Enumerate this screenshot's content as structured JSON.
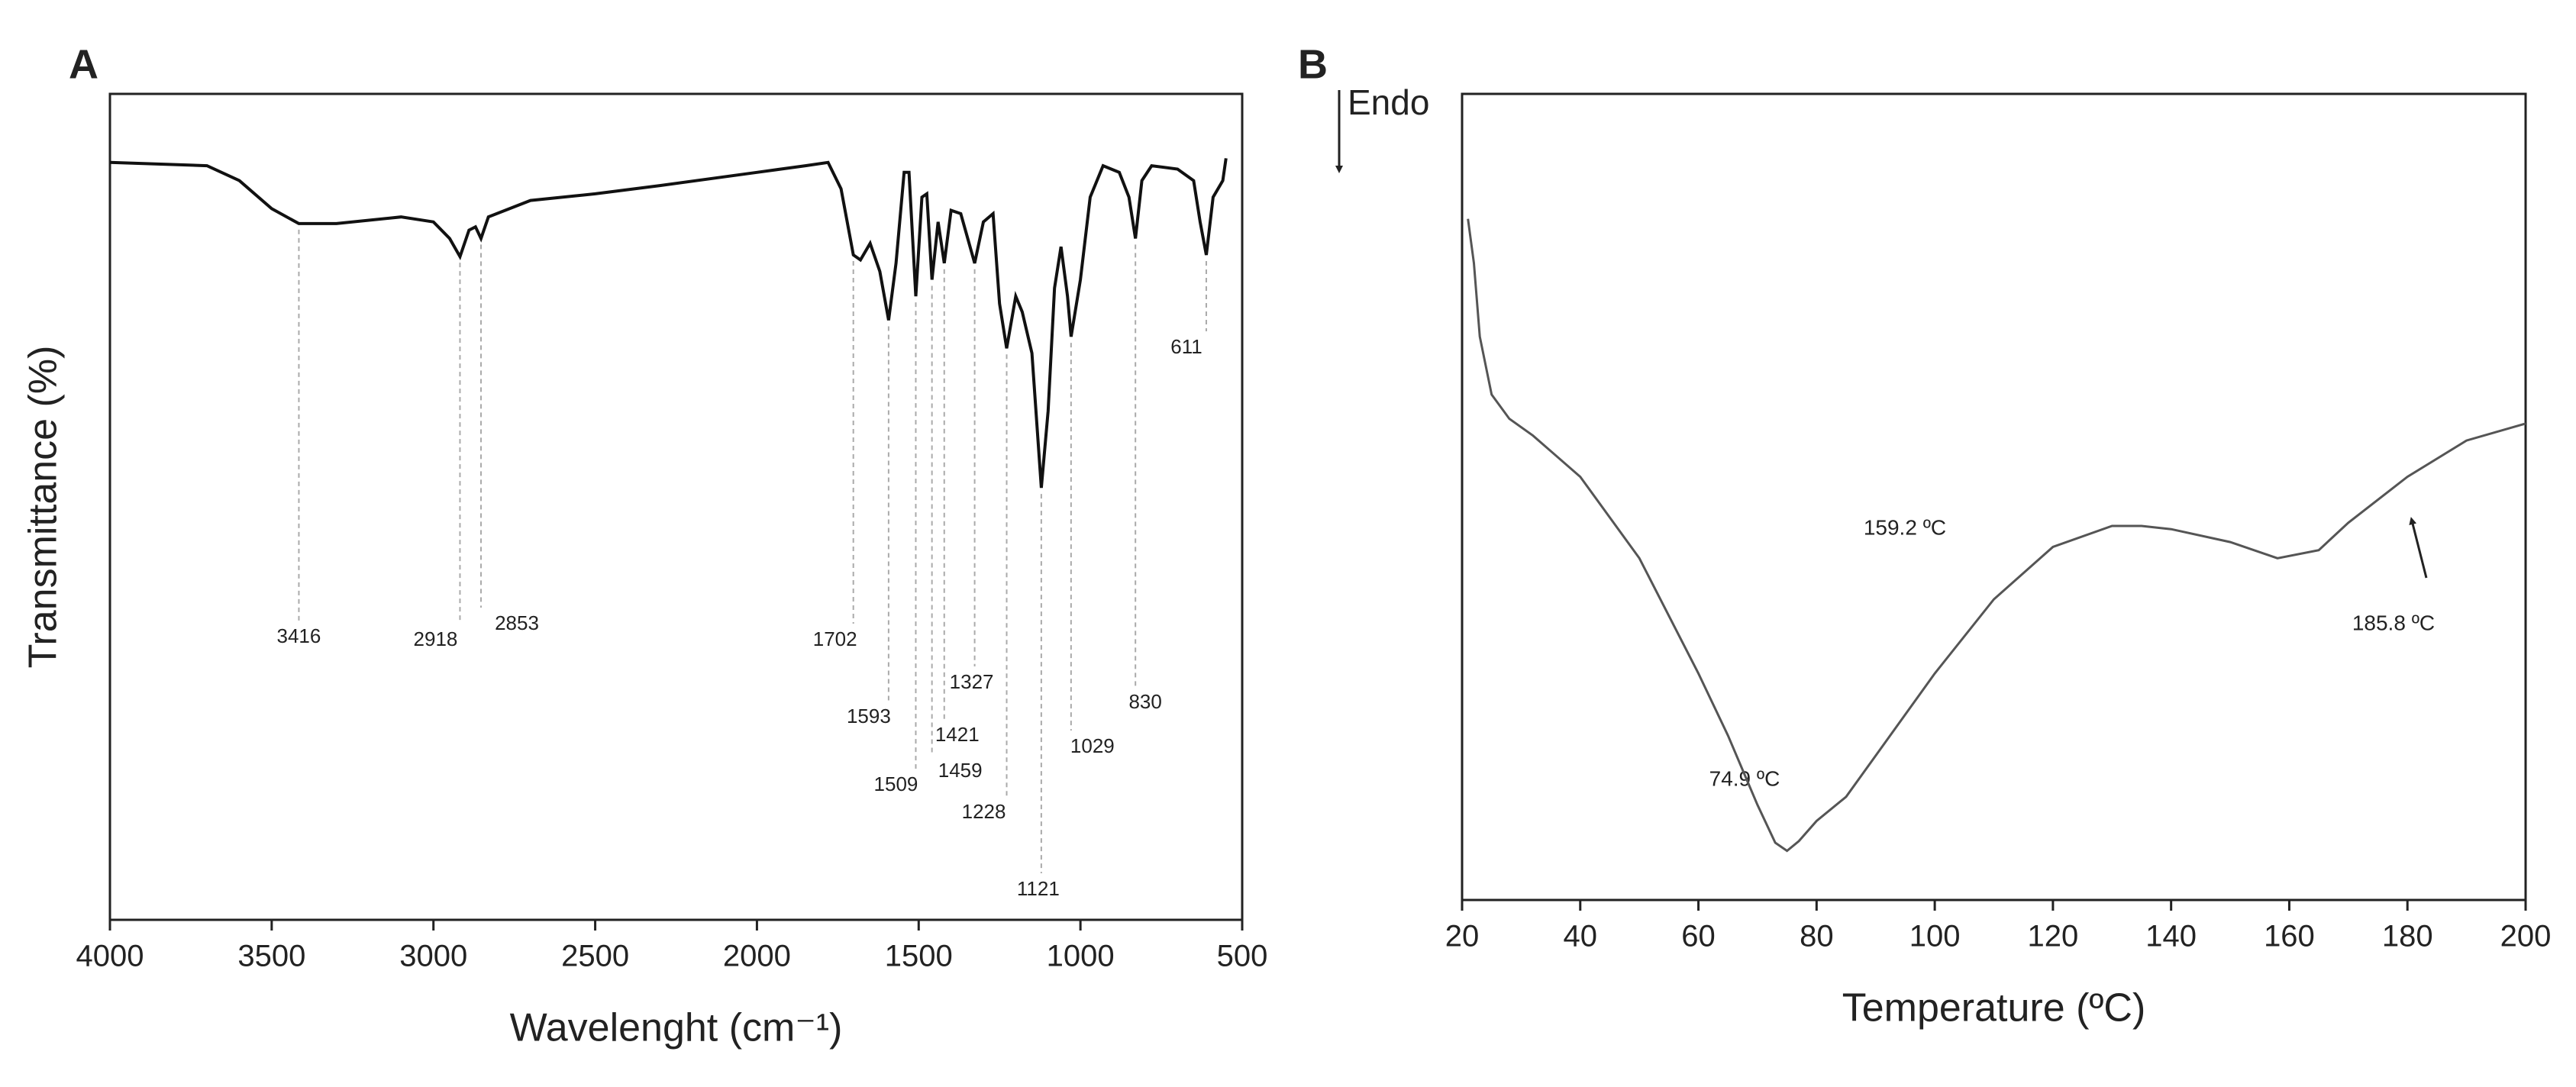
{
  "chart_data": [
    {
      "type": "line",
      "panel": "A",
      "xlabel": "Wavelenght (cm⁻¹)",
      "ylabel": "Transmittance (%)",
      "xlim": [
        4000,
        500
      ],
      "xticks": [
        4000,
        3500,
        3000,
        2500,
        2000,
        1500,
        1000,
        500
      ],
      "ylim": [
        0,
        100
      ],
      "color": "#111111",
      "x": [
        4000,
        3700,
        3600,
        3500,
        3416,
        3300,
        3100,
        3000,
        2950,
        2918,
        2890,
        2870,
        2853,
        2830,
        2700,
        2500,
        2300,
        2000,
        1850,
        1780,
        1740,
        1702,
        1680,
        1650,
        1620,
        1593,
        1570,
        1545,
        1530,
        1509,
        1490,
        1475,
        1459,
        1440,
        1421,
        1400,
        1370,
        1327,
        1300,
        1270,
        1250,
        1228,
        1200,
        1180,
        1150,
        1121,
        1100,
        1080,
        1060,
        1040,
        1029,
        1000,
        970,
        930,
        880,
        850,
        830,
        810,
        780,
        700,
        650,
        630,
        611,
        590,
        560,
        550
      ],
      "values": [
        91.7,
        91.3,
        89.5,
        86.1,
        84.3,
        84.3,
        85.1,
        84.5,
        82.5,
        80.3,
        83.5,
        83.9,
        82.5,
        85.1,
        87.1,
        87.9,
        88.9,
        90.5,
        91.3,
        91.7,
        88.5,
        80.5,
        79.9,
        81.9,
        78.5,
        72.6,
        79.5,
        90.5,
        90.5,
        75.5,
        87.5,
        87.9,
        77.5,
        84.5,
        79.5,
        85.9,
        85.5,
        79.5,
        84.5,
        85.5,
        74.6,
        69.2,
        75.5,
        73.6,
        68.6,
        52.3,
        61.6,
        76.5,
        81.5,
        75.5,
        70.6,
        77.5,
        87.5,
        91.3,
        90.5,
        87.5,
        82.5,
        89.5,
        91.3,
        90.9,
        89.5,
        84.5,
        80.5,
        87.5,
        89.5,
        92.2
      ],
      "peaks": [
        3416,
        2918,
        2853,
        1702,
        1593,
        1509,
        1459,
        1421,
        1327,
        1228,
        1121,
        1029,
        830,
        611
      ]
    },
    {
      "type": "line",
      "panel": "B",
      "xlabel": "Temperature (ºC)",
      "ylabel": "Endo",
      "xlim": [
        20,
        200
      ],
      "xticks": [
        20,
        40,
        60,
        80,
        100,
        120,
        140,
        160,
        180,
        200
      ],
      "ylim": [
        0,
        100
      ],
      "color": "#555555",
      "x": [
        21,
        22,
        23,
        25,
        28,
        32,
        40,
        50,
        60,
        65,
        70,
        73,
        75,
        77,
        80,
        85,
        90,
        100,
        110,
        120,
        130,
        135,
        140,
        150,
        158,
        165,
        170,
        180,
        190,
        200
      ],
      "values": [
        84.5,
        79.0,
        69.9,
        62.7,
        59.7,
        57.6,
        52.5,
        42.4,
        28.1,
        20.4,
        11.8,
        7.1,
        6.1,
        7.3,
        9.8,
        12.8,
        17.9,
        28.1,
        37.3,
        43.8,
        46.4,
        46.4,
        46.0,
        44.4,
        42.4,
        43.4,
        46.8,
        52.5,
        57.0,
        59.1
      ],
      "annotations": [
        "74.9 ºC",
        "159.2 ºC",
        "185.8 ºC"
      ]
    }
  ]
}
